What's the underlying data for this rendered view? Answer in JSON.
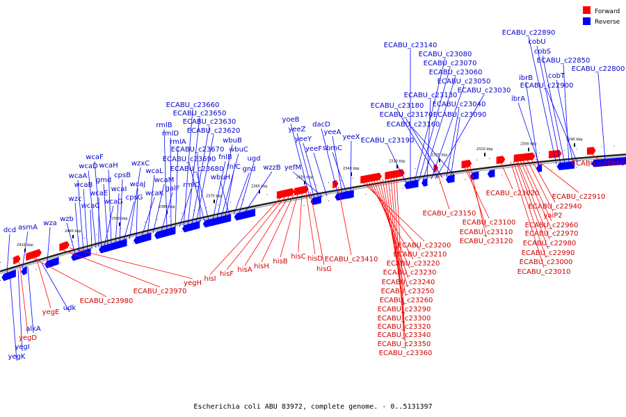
{
  "legend": {
    "forward": "Forward",
    "reverse": "Reverse",
    "forward_color": "#ff0000",
    "reverse_color": "#0000ff"
  },
  "caption": "Escherichia coli ABU 83972, complete genome. - 0..5131397",
  "ticks": [
    "2410 kbp",
    "2400 kbp",
    "2390 kbp",
    "2380 kbp",
    "2370 kbp",
    "2360 kbp",
    "2350 kbp",
    "2340 kbp",
    "2330 kbp",
    "2320 kbp",
    "2310 kbp",
    "2300 kbp",
    "2290 kbp"
  ],
  "reverse_genes": [
    "dcd",
    "asmA",
    "wza",
    "wzb",
    "wzc",
    "wcaA",
    "wcaB",
    "wcaC",
    "wcaD",
    "wcaE",
    "wcaF",
    "wcaG",
    "gmd",
    "wcaH",
    "wcaI",
    "cpsB",
    "cpsG",
    "wzxC",
    "wcaJ",
    "wcaK",
    "wcaL",
    "wcaM",
    "galF",
    "rmlB",
    "rmlD",
    "rmlA",
    "rmlC",
    "ECABU_c23660",
    "ECABU_c23650",
    "ECABU_c23630",
    "ECABU_c23620",
    "ECABU_c23670",
    "ECABU_c23690",
    "ECABU_c23680",
    "fnlB",
    "wbuB",
    "wbuC",
    "fnlC",
    "wbuH",
    "gnd",
    "ugd",
    "wzzB",
    "yoeB",
    "yeeZ",
    "yeeY",
    "yefM",
    "yeeF",
    "dacD",
    "yeeA",
    "sbmC",
    "yeeX",
    "ECABU_c23140",
    "ECABU_c23080",
    "ECABU_c23070",
    "ECABU_c23060",
    "ECABU_c23130",
    "ECABU_c23050",
    "ECABU_c23030",
    "ECABU_c23180",
    "ECABU_c23170",
    "ECABU_c23040",
    "ECABU_c23090",
    "ECABU_c23160",
    "ECABU_c23190",
    "ECABU_c22890",
    "cobU",
    "cobS",
    "ECABU_c22850",
    "ECABU_c22800",
    "ibrB",
    "cobT",
    "ECABU_c22900",
    "ibrA",
    "udk",
    "alkA",
    "yegI",
    "yegK"
  ],
  "forward_genes": [
    "yegD",
    "yegE",
    "ECABU_c23980",
    "ECABU_c23970",
    "yegH",
    "hisI",
    "hisF",
    "hisA",
    "hisH",
    "hisB",
    "hisC",
    "hisD",
    "hisG",
    "ECABU_c23410",
    "ECABU_c23200",
    "ECABU_c23210",
    "ECABU_c23220",
    "ECABU_c23230",
    "ECABU_c23240",
    "ECABU_c23250",
    "ECABU_c23260",
    "ECABU_c23290",
    "ECABU_c23300",
    "ECABU_c23320",
    "ECABU_c23340",
    "ECABU_c23350",
    "ECABU_c23360",
    "ECABU_c23150",
    "ECABU_c23100",
    "ECABU_c23110",
    "ECABU_c23120",
    "ECABU_c23020",
    "ECABU_c22910",
    "ECABU_c22940",
    "yaiP2",
    "ECABU_c22960",
    "ECABU_c22970",
    "ECABU_c22980",
    "ECABU_c22990",
    "ECABU_c23000",
    "ECABU_c23010",
    "ECABU_c22840"
  ]
}
